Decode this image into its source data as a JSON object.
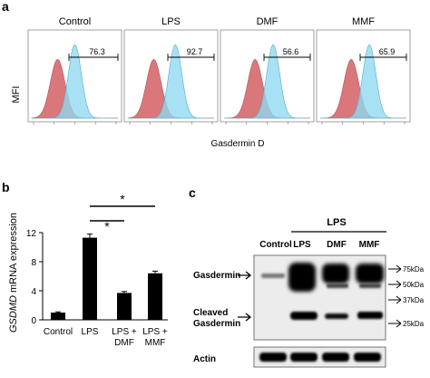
{
  "panel_a": {
    "label": "a",
    "y_axis_label": "MFI",
    "x_axis_label": "Gasdermin D",
    "histograms": [
      {
        "title": "Control",
        "gate_value": "76.3"
      },
      {
        "title": "LPS",
        "gate_value": "92.7"
      },
      {
        "title": "DMF",
        "gate_value": "56.6"
      },
      {
        "title": "MMF",
        "gate_value": "65.9"
      }
    ],
    "colors": {
      "isotype": "#d9777a",
      "stained": "#8fd8f0",
      "overlap": "#9a86a8"
    }
  },
  "panel_b": {
    "label": "b",
    "significance": [
      "*",
      "*"
    ]
  },
  "panel_c": {
    "label": "c",
    "lps_header": "LPS",
    "lanes": [
      "Control",
      "LPS",
      "DMF",
      "MMF"
    ],
    "band_labels": {
      "gasdermin": "Gasdermin",
      "cleaved_line1": "Cleaved",
      "cleaved_line2": "Gasdermin",
      "actin": "Actin"
    },
    "markers": [
      "75kDa",
      "50kDa",
      "37kDa",
      "25kDa"
    ]
  },
  "chart_data": {
    "type": "bar",
    "title": "",
    "xlabel": "",
    "ylabel": "GSDMD mRNA expression",
    "ylim": [
      0,
      12
    ],
    "yticks": [
      0,
      4,
      8,
      12
    ],
    "categories": [
      "Control",
      "LPS",
      "LPS + DMF",
      "LPS + MMF"
    ],
    "values": [
      1.0,
      11.3,
      3.7,
      6.4
    ],
    "errors": [
      0.1,
      0.5,
      0.2,
      0.3
    ],
    "bar_color": "#000000"
  }
}
